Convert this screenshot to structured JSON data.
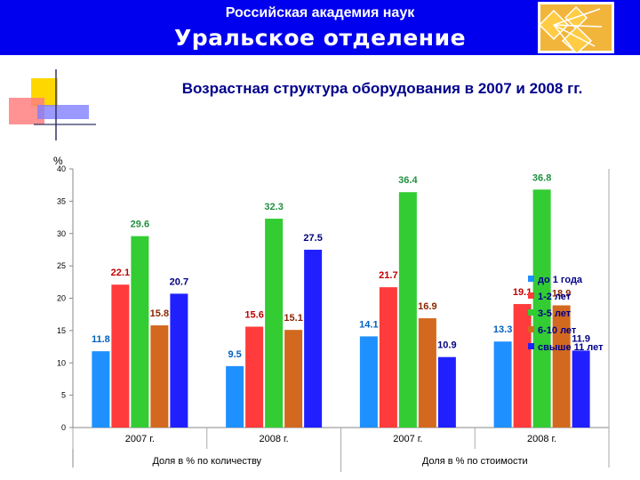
{
  "header": {
    "org": "Российская академия наук",
    "department": "Уральское отделение",
    "background": "#0000ee"
  },
  "slide_title": "Возрастная структура оборудования в 2007 и 2008 гг.",
  "chart_data": {
    "type": "bar",
    "y_unit": "%",
    "ylim": [
      0,
      40
    ],
    "yticks": [
      0,
      5,
      10,
      15,
      20,
      25,
      30,
      35,
      40
    ],
    "grid": false,
    "legend_position": "right",
    "groups": [
      {
        "label": "Доля в % по количеству",
        "categories": [
          "2007 г.",
          "2008 г."
        ]
      },
      {
        "label": "Доля в % по стоимости",
        "categories": [
          "2007 г.",
          "2008 г."
        ]
      }
    ],
    "categories": [
      "2007 г.",
      "2008 г.",
      "2007 г.",
      "2008 г."
    ],
    "series": [
      {
        "name": "до 1 года",
        "color": "#1e90ff",
        "label_color": "#0060c0",
        "values": [
          11.8,
          9.5,
          14.1,
          13.3
        ]
      },
      {
        "name": "1-2 лет",
        "color": "#ff3b3b",
        "label_color": "#c00000",
        "values": [
          22.1,
          15.6,
          21.7,
          19.1
        ]
      },
      {
        "name": "3-5 лет",
        "color": "#33cc33",
        "label_color": "#1f8f3f",
        "values": [
          29.6,
          32.3,
          36.4,
          36.8
        ]
      },
      {
        "name": "6-10 лет",
        "color": "#d2691e",
        "label_color": "#8b2500",
        "values": [
          15.8,
          15.1,
          16.9,
          18.9
        ]
      },
      {
        "name": "свыше 11 лет",
        "color": "#2020ff",
        "label_color": "#000080",
        "values": [
          20.7,
          27.5,
          10.9,
          11.9
        ]
      }
    ],
    "data_labels": [
      [
        "11.8",
        "9.5",
        "14.1",
        "13.3"
      ],
      [
        "22.1",
        "15.6",
        "21.7",
        "19.1"
      ],
      [
        "29.6",
        "32.3",
        "36.4",
        "36.8"
      ],
      [
        "15.8",
        "15.1",
        "16.9",
        "18.9"
      ],
      [
        "20.7",
        "27.5",
        "10.9",
        "11.9"
      ]
    ]
  }
}
